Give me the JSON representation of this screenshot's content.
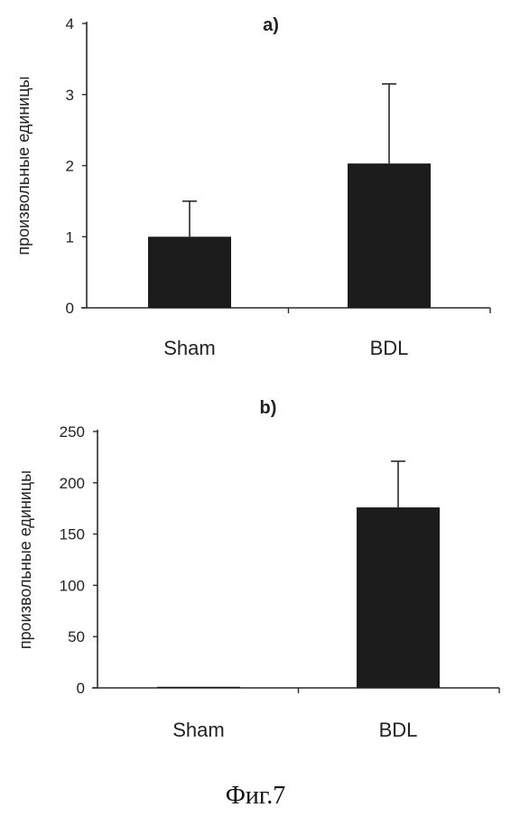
{
  "chart_data": [
    {
      "type": "bar",
      "title": "a)",
      "ylabel": "произвольные единицы",
      "xlabel": "",
      "categories": [
        "Sham",
        "BDL"
      ],
      "values": [
        1.0,
        2.03
      ],
      "error_upper": [
        1.5,
        3.15
      ],
      "ylim": [
        0,
        4
      ],
      "yticks": [
        0,
        1,
        2,
        3,
        4
      ],
      "grid": false
    },
    {
      "type": "bar",
      "title": "b)",
      "ylabel": "произвольные единицы",
      "xlabel": "",
      "categories": [
        "Sham",
        "BDL"
      ],
      "values": [
        1.0,
        176
      ],
      "error_upper": [
        1.0,
        221
      ],
      "ylim": [
        0,
        250
      ],
      "yticks": [
        0,
        50,
        100,
        150,
        200,
        250
      ],
      "grid": false
    }
  ],
  "caption": "Фиг.7",
  "colors": {
    "bar": "#1c1c1c",
    "axis": "#2a2a2a",
    "text": "#222222"
  }
}
